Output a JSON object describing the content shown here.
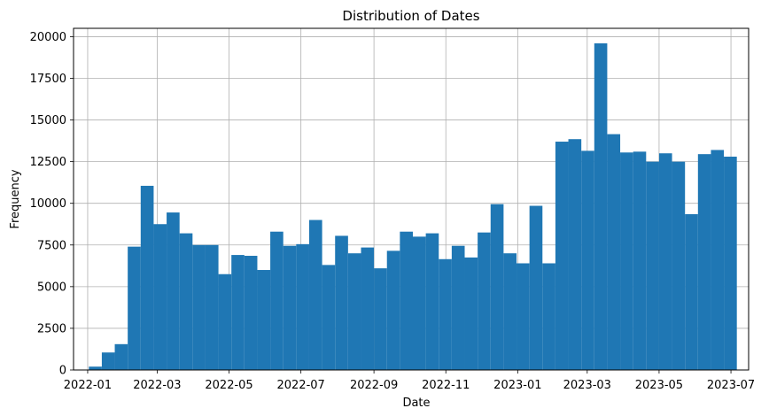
{
  "chart_data": {
    "type": "bar",
    "title": "Distribution of Dates",
    "xlabel": "Date",
    "ylabel": "Frequency",
    "grid": true,
    "bar_color": "#1f77b4",
    "xlim": [
      "2021-12-20",
      "2023-07-16"
    ],
    "ylim": [
      0,
      20500
    ],
    "x_ticks": [
      "2022-01",
      "2022-03",
      "2022-05",
      "2022-07",
      "2022-09",
      "2022-11",
      "2023-01",
      "2023-03",
      "2023-05",
      "2023-07"
    ],
    "y_ticks": [
      0,
      2500,
      5000,
      7500,
      10000,
      12500,
      15000,
      17500,
      20000
    ],
    "bin_edges": [
      "2022-01-02",
      "2022-01-13",
      "2022-01-24",
      "2022-02-04",
      "2022-02-15",
      "2022-02-26",
      "2022-03-09",
      "2022-03-20",
      "2022-03-31",
      "2022-04-11",
      "2022-04-22",
      "2022-05-03",
      "2022-05-14",
      "2022-05-25",
      "2022-06-05",
      "2022-06-16",
      "2022-06-27",
      "2022-07-08",
      "2022-07-19",
      "2022-07-30",
      "2022-08-10",
      "2022-08-21",
      "2022-09-01",
      "2022-09-12",
      "2022-09-23",
      "2022-10-04",
      "2022-10-15",
      "2022-10-26",
      "2022-11-06",
      "2022-11-17",
      "2022-11-28",
      "2022-12-09",
      "2022-12-20",
      "2022-12-31",
      "2023-01-11",
      "2023-01-22",
      "2023-02-02",
      "2023-02-13",
      "2023-02-24",
      "2023-03-07",
      "2023-03-18",
      "2023-03-29",
      "2023-04-09",
      "2023-04-20",
      "2023-05-01",
      "2023-05-12",
      "2023-05-23",
      "2023-06-03",
      "2023-06-14",
      "2023-06-25",
      "2023-07-06"
    ],
    "values": [
      200,
      1050,
      1550,
      7400,
      11050,
      8750,
      9450,
      8200,
      7500,
      7500,
      5750,
      6900,
      6850,
      6000,
      8300,
      7450,
      7550,
      9000,
      6300,
      8050,
      7000,
      7350,
      6100,
      7150,
      8300,
      8000,
      8200,
      6650,
      7450,
      6750,
      8250,
      9950,
      7000,
      6400,
      9850,
      6400,
      13700,
      13850,
      13150,
      19600,
      14150,
      13050,
      13100,
      12500,
      13000,
      12500,
      9350,
      12950,
      13200,
      12800
    ]
  }
}
